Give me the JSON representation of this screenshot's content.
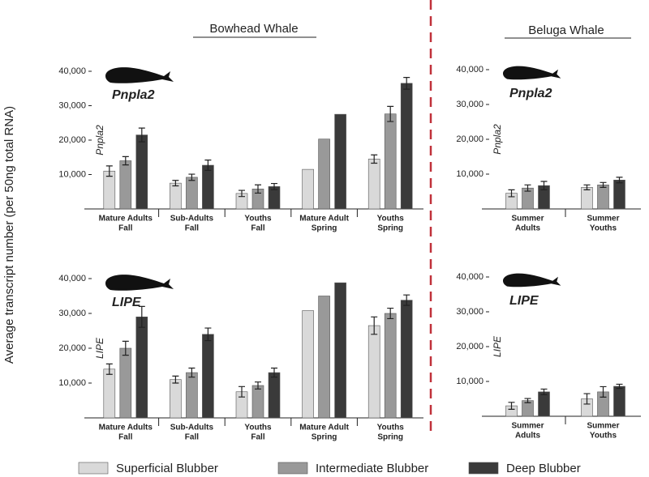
{
  "group_titles": [
    "Bowhead Whale",
    "Beluga Whale"
  ],
  "y_axis_label": "Average transcript number (per 50ng total RNA)",
  "legend": [
    {
      "name": "Superficial Blubber",
      "color": "#d9d9d9"
    },
    {
      "name": "Intermediate Blubber",
      "color": "#999999"
    },
    {
      "name": "Deep Blubber",
      "color": "#3a3a3a"
    }
  ],
  "chart_data": [
    {
      "type": "bar",
      "annotation": "Pnpla2",
      "y_label": "Pnpla2",
      "categories": [
        [
          "Mature Adults",
          "Fall"
        ],
        [
          "Sub-Adults",
          "Fall"
        ],
        [
          "Youths",
          "Fall"
        ],
        [
          "Mature Adult",
          "Spring"
        ],
        [
          "Youths",
          "Spring"
        ]
      ],
      "series": [
        {
          "values": [
            11000,
            7500,
            4500,
            11500,
            14500
          ],
          "errors": [
            1500,
            800,
            900,
            null,
            1200
          ]
        },
        {
          "values": [
            14000,
            9200,
            5800,
            20300,
            27600
          ],
          "errors": [
            1200,
            900,
            1200,
            null,
            2200
          ]
        },
        {
          "values": [
            21500,
            12700,
            6500,
            27500,
            36500
          ],
          "errors": [
            2000,
            1500,
            900,
            null,
            1700
          ]
        }
      ],
      "ylim": [
        0,
        40000
      ],
      "yticks": [
        {
          "value": 10000,
          "label": "10,000"
        },
        {
          "value": 20000,
          "label": "20,000"
        },
        {
          "value": 30000,
          "label": "30,000"
        },
        {
          "value": 40000,
          "label": "40,000"
        }
      ]
    },
    {
      "type": "bar",
      "annotation": "Pnpla2",
      "y_label": "Pnpla2",
      "categories": [
        [
          "Summer",
          "Adults"
        ],
        [
          "Summer",
          "Youths"
        ]
      ],
      "series": [
        {
          "values": [
            4500,
            6200
          ],
          "errors": [
            1000,
            700
          ]
        },
        {
          "values": [
            6000,
            6900
          ],
          "errors": [
            900,
            700
          ]
        },
        {
          "values": [
            6700,
            8300
          ],
          "errors": [
            1200,
            800
          ]
        }
      ],
      "ylim": [
        0,
        40000
      ],
      "yticks": [
        {
          "value": 10000,
          "label": "10,000"
        },
        {
          "value": 20000,
          "label": "20,000"
        },
        {
          "value": 30000,
          "label": "30,000"
        },
        {
          "value": 40000,
          "label": "40,000"
        }
      ]
    },
    {
      "type": "bar",
      "annotation": "LIPE",
      "y_label": "LIPE",
      "categories": [
        [
          "Mature Adults",
          "Fall"
        ],
        [
          "Sub-Adults",
          "Fall"
        ],
        [
          "Youths",
          "Fall"
        ],
        [
          "Mature Adult",
          "Spring"
        ],
        [
          "Youths",
          "Spring"
        ]
      ],
      "series": [
        {
          "values": [
            14000,
            11000,
            7500,
            30800,
            26500
          ],
          "errors": [
            1500,
            1000,
            1500,
            null,
            2500
          ]
        },
        {
          "values": [
            20000,
            13000,
            9300,
            35000,
            30000
          ],
          "errors": [
            2000,
            1300,
            1000,
            null,
            1500
          ]
        },
        {
          "values": [
            29000,
            24000,
            13000,
            38800,
            33800
          ],
          "errors": [
            3000,
            1800,
            1300,
            null,
            1500
          ]
        }
      ],
      "ylim": [
        0,
        40000
      ],
      "yticks": [
        {
          "value": 10000,
          "label": "10,000"
        },
        {
          "value": 20000,
          "label": "20,000"
        },
        {
          "value": 30000,
          "label": "30,000"
        },
        {
          "value": 40000,
          "label": "40,000"
        }
      ]
    },
    {
      "type": "bar",
      "annotation": "LIPE",
      "y_label": "LIPE",
      "categories": [
        [
          "Summer",
          "Adults"
        ],
        [
          "Summer",
          "Youths"
        ]
      ],
      "series": [
        {
          "values": [
            3000,
            5000
          ],
          "errors": [
            1000,
            1500
          ]
        },
        {
          "values": [
            4500,
            7000
          ],
          "errors": [
            600,
            1500
          ]
        },
        {
          "values": [
            7000,
            8600
          ],
          "errors": [
            800,
            600
          ]
        }
      ],
      "ylim": [
        0,
        40000
      ],
      "yticks": [
        {
          "value": 10000,
          "label": "10,000"
        },
        {
          "value": 20000,
          "label": "20,000"
        },
        {
          "value": 30000,
          "label": "30,000"
        },
        {
          "value": 40000,
          "label": "40,000"
        }
      ]
    }
  ]
}
